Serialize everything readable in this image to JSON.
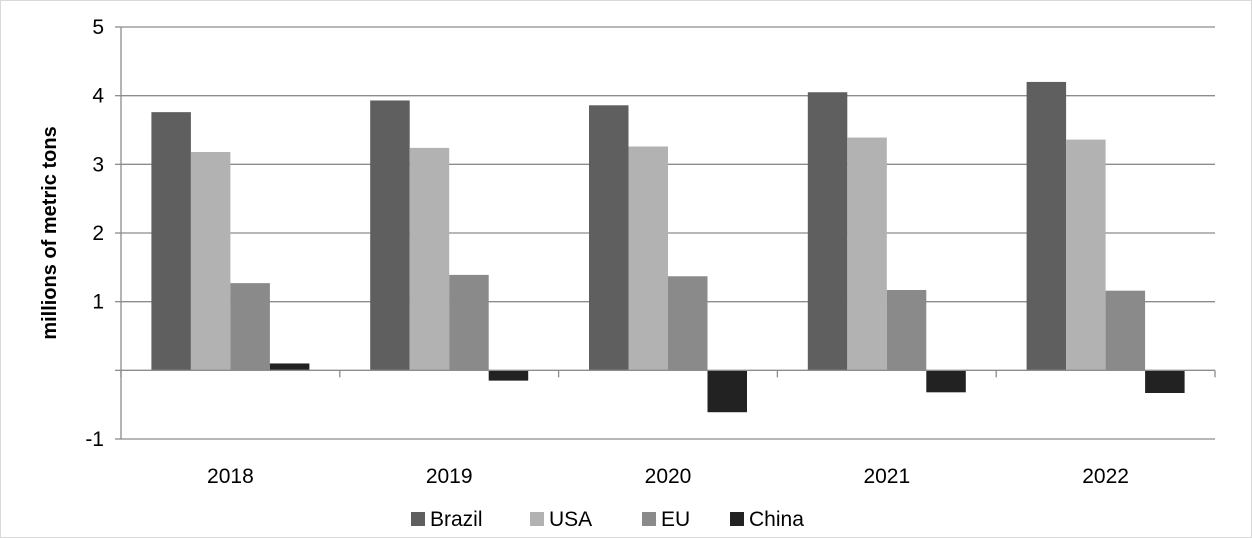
{
  "chart_data": {
    "type": "bar",
    "title": "",
    "xlabel": "",
    "ylabel": "millions of metric tons",
    "categories": [
      "2018",
      "2019",
      "2020",
      "2021",
      "2022"
    ],
    "series": [
      {
        "name": "Brazil",
        "color": "#5f5f5f",
        "values": [
          3.76,
          3.93,
          3.86,
          4.05,
          4.2
        ]
      },
      {
        "name": "USA",
        "color": "#b2b2b2",
        "values": [
          3.18,
          3.24,
          3.26,
          3.39,
          3.36
        ]
      },
      {
        "name": "EU",
        "color": "#8a8a8a",
        "values": [
          1.27,
          1.39,
          1.37,
          1.17,
          1.16
        ]
      },
      {
        "name": "China",
        "color": "#222222",
        "values": [
          0.1,
          -0.15,
          -0.61,
          -0.32,
          -0.33
        ]
      }
    ],
    "ylim": [
      -1,
      5
    ],
    "yticks": [
      5,
      4,
      3,
      2,
      1,
      -1
    ],
    "grid": true,
    "legend_position": "bottom",
    "grid_color": "#8c8c8c",
    "axis_color": "#8c8c8c"
  }
}
